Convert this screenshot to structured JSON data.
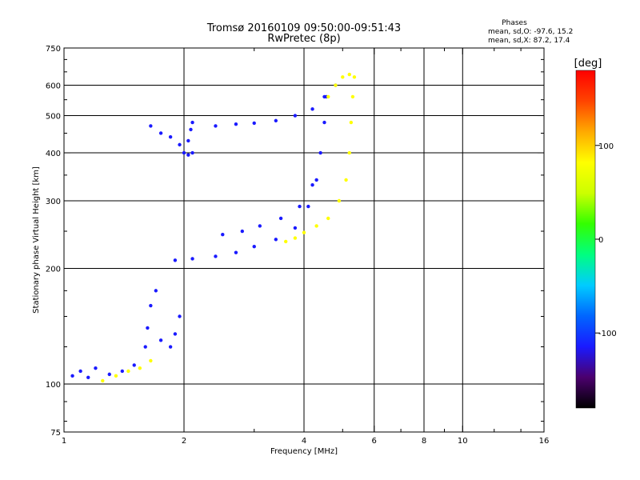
{
  "chart_data": {
    "type": "scatter",
    "title": "Tromsø 20160109 09:50:00-09:51:43",
    "subtitle": "RwPretec (8p)",
    "xlabel": "Frequency [MHz]",
    "ylabel": "Stationary phase Virtual Height [km]",
    "x_scale": "log",
    "y_scale": "log",
    "xlim": [
      1,
      16
    ],
    "ylim": [
      75,
      750
    ],
    "x_ticks": [
      1,
      2,
      4,
      6,
      8,
      10,
      16
    ],
    "x_tick_labels": [
      "1",
      "2",
      "4",
      "6",
      "8",
      "10",
      "16"
    ],
    "x_minor_ticks": [
      3,
      5,
      7,
      9,
      12,
      14
    ],
    "y_ticks": [
      75,
      100,
      200,
      300,
      400,
      500,
      600,
      750
    ],
    "y_tick_labels": [
      "75",
      "100",
      "200",
      "300",
      "400",
      "500",
      "600",
      "750"
    ],
    "y_minor_ticks": [
      80,
      90,
      125,
      150,
      175,
      250,
      350,
      450,
      550,
      650,
      700
    ],
    "grid": true,
    "stats": {
      "heading": "Phases",
      "line_o": "mean, sd,O: -97.6, 15.2",
      "line_x": "mean, sd,X:  87.2, 17.4"
    },
    "colorbar": {
      "label": "[deg]",
      "min": -180,
      "max": 180,
      "ticks": [
        100,
        0,
        -100
      ],
      "tick_labels": [
        "100",
        "0",
        "-100"
      ],
      "colors": [
        "#000000",
        "#4b006e",
        "#1a1aff",
        "#0066ff",
        "#00ccff",
        "#00ff80",
        "#33ff00",
        "#ccff00",
        "#ffff00",
        "#ffaa00",
        "#ff4400",
        "#ff0000"
      ]
    },
    "traces": [
      {
        "name": "",
        "phase": -100,
        "points": [
          [
            1.05,
            105
          ],
          [
            1.1,
            108
          ],
          [
            1.15,
            104
          ],
          [
            1.2,
            110
          ],
          [
            1.3,
            106
          ],
          [
            1.4,
            108
          ],
          [
            1.5,
            112
          ],
          [
            1.6,
            125
          ],
          [
            1.62,
            140
          ],
          [
            1.65,
            160
          ],
          [
            1.7,
            175
          ],
          [
            1.75,
            130
          ],
          [
            1.85,
            125
          ],
          [
            1.9,
            135
          ],
          [
            1.95,
            150
          ]
        ]
      },
      {
        "name": "",
        "phase": 90,
        "points": [
          [
            1.25,
            102
          ],
          [
            1.35,
            105
          ],
          [
            1.45,
            108
          ],
          [
            1.55,
            110
          ],
          [
            1.65,
            115
          ]
        ]
      },
      {
        "name": "",
        "phase": -100,
        "points": [
          [
            1.65,
            470
          ],
          [
            1.75,
            450
          ],
          [
            1.85,
            440
          ],
          [
            1.95,
            420
          ],
          [
            2.0,
            400
          ],
          [
            2.05,
            395
          ],
          [
            2.1,
            400
          ],
          [
            2.05,
            430
          ],
          [
            2.08,
            460
          ],
          [
            2.1,
            480
          ]
        ]
      },
      {
        "name": "",
        "phase": -100,
        "points": [
          [
            2.4,
            470
          ],
          [
            2.7,
            475
          ],
          [
            3.0,
            478
          ],
          [
            3.4,
            485
          ],
          [
            3.8,
            500
          ],
          [
            4.2,
            520
          ],
          [
            4.5,
            560
          ],
          [
            4.8,
            600
          ]
        ]
      },
      {
        "name": "",
        "phase": -100,
        "points": [
          [
            1.9,
            210
          ],
          [
            2.1,
            212
          ],
          [
            2.4,
            215
          ],
          [
            2.7,
            220
          ],
          [
            3.0,
            228
          ],
          [
            3.4,
            238
          ],
          [
            3.8,
            255
          ],
          [
            4.1,
            290
          ],
          [
            4.3,
            340
          ],
          [
            4.4,
            400
          ],
          [
            4.5,
            480
          ],
          [
            4.55,
            560
          ]
        ]
      },
      {
        "name": "",
        "phase": -100,
        "points": [
          [
            2.5,
            245
          ],
          [
            2.8,
            250
          ],
          [
            3.1,
            258
          ],
          [
            3.5,
            270
          ],
          [
            3.9,
            290
          ],
          [
            4.2,
            330
          ]
        ]
      },
      {
        "name": "",
        "phase": 90,
        "points": [
          [
            3.6,
            235
          ],
          [
            3.8,
            240
          ],
          [
            4.0,
            248
          ],
          [
            4.3,
            258
          ],
          [
            4.6,
            270
          ],
          [
            4.9,
            300
          ],
          [
            5.1,
            340
          ],
          [
            5.2,
            400
          ],
          [
            5.25,
            480
          ],
          [
            5.3,
            560
          ],
          [
            5.35,
            630
          ]
        ]
      },
      {
        "name": "",
        "phase": 90,
        "points": [
          [
            4.6,
            560
          ],
          [
            4.8,
            600
          ],
          [
            5.0,
            630
          ],
          [
            5.2,
            640
          ]
        ]
      }
    ]
  }
}
